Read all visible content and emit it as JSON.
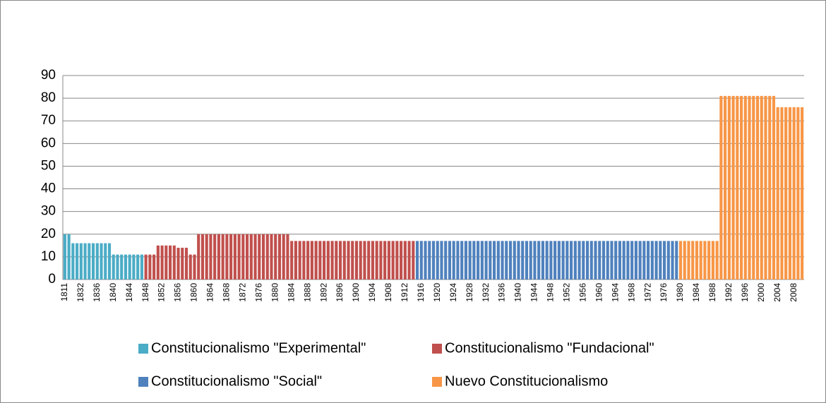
{
  "chart_data": {
    "type": "bar",
    "categories": [
      "1811",
      null,
      null,
      null,
      "1832",
      null,
      null,
      null,
      "1836",
      null,
      null,
      null,
      "1840",
      null,
      null,
      null,
      "1844",
      null,
      null,
      null,
      "1848",
      null,
      null,
      null,
      "1852",
      null,
      null,
      null,
      "1856",
      null,
      null,
      null,
      "1860",
      null,
      null,
      null,
      "1864",
      null,
      null,
      null,
      "1868",
      null,
      null,
      null,
      "1872",
      null,
      null,
      null,
      "1876",
      null,
      null,
      null,
      "1880",
      null,
      null,
      null,
      "1884",
      null,
      null,
      null,
      "1888",
      null,
      null,
      null,
      "1892",
      null,
      null,
      null,
      "1896",
      null,
      null,
      null,
      "1900",
      null,
      null,
      null,
      "1904",
      null,
      null,
      null,
      "1908",
      null,
      null,
      null,
      "1912",
      null,
      null,
      null,
      "1916",
      null,
      null,
      null,
      "1920",
      null,
      null,
      null,
      "1924",
      null,
      null,
      null,
      "1928",
      null,
      null,
      null,
      "1932",
      null,
      null,
      null,
      "1936",
      null,
      null,
      null,
      "1940",
      null,
      null,
      null,
      "1944",
      null,
      null,
      null,
      "1948",
      null,
      null,
      null,
      "1952",
      null,
      null,
      null,
      "1956",
      null,
      null,
      null,
      "1960",
      null,
      null,
      null,
      "1964",
      null,
      null,
      null,
      "1968",
      null,
      null,
      null,
      "1972",
      null,
      null,
      null,
      "1976",
      null,
      null,
      null,
      "1980",
      null,
      null,
      null,
      "1984",
      null,
      null,
      null,
      "1988",
      null,
      null,
      null,
      "1992",
      null,
      null,
      null,
      "1996",
      null,
      null,
      null,
      "2000",
      null,
      null,
      null,
      "2004",
      null,
      null,
      null,
      "2008",
      null,
      null
    ],
    "series": [
      {
        "name": "Constitucionalismo \"Experimental\"",
        "color": "#4bacc6",
        "values": [
          20,
          20,
          16,
          16,
          16,
          16,
          16,
          16,
          16,
          16,
          16,
          16,
          11,
          11,
          11,
          11,
          11,
          11,
          11,
          11,
          null,
          null,
          null,
          null,
          null,
          null,
          null,
          null,
          null,
          null,
          null,
          null,
          null,
          null,
          null,
          null,
          null,
          null,
          null,
          null,
          null,
          null,
          null,
          null,
          null,
          null,
          null,
          null,
          null,
          null,
          null,
          null,
          null,
          null,
          null,
          null,
          null,
          null,
          null,
          null,
          null,
          null,
          null,
          null,
          null,
          null,
          null,
          null,
          null,
          null,
          null,
          null,
          null,
          null,
          null,
          null,
          null,
          null,
          null,
          null,
          null,
          null,
          null,
          null,
          null,
          null,
          null,
          null,
          null,
          null,
          null,
          null,
          null,
          null,
          null,
          null,
          null,
          null,
          null,
          null,
          null,
          null,
          null,
          null,
          null,
          null,
          null,
          null,
          null,
          null,
          null,
          null,
          null,
          null,
          null,
          null,
          null,
          null,
          null,
          null,
          null,
          null,
          null,
          null,
          null,
          null,
          null,
          null,
          null,
          null,
          null,
          null,
          null,
          null,
          null,
          null,
          null,
          null,
          null,
          null,
          null,
          null,
          null,
          null,
          null,
          null,
          null,
          null,
          null,
          null,
          null,
          null,
          null,
          null,
          null,
          null,
          null,
          null,
          null,
          null,
          null,
          null,
          null,
          null,
          null,
          null,
          null,
          null,
          null,
          null,
          null,
          null,
          null,
          null,
          null,
          null,
          null,
          null,
          null,
          null,
          null,
          null,
          null
        ]
      },
      {
        "name": "Constitucionalismo \"Fundacional\"",
        "color": "#c0504d",
        "values": [
          null,
          null,
          null,
          null,
          null,
          null,
          null,
          null,
          null,
          null,
          null,
          null,
          null,
          null,
          null,
          null,
          null,
          null,
          null,
          null,
          11,
          11,
          11,
          15,
          15,
          15,
          15,
          15,
          14,
          14,
          14,
          11,
          11,
          20,
          20,
          20,
          20,
          20,
          20,
          20,
          20,
          20,
          20,
          20,
          20,
          20,
          20,
          20,
          20,
          20,
          20,
          20,
          20,
          20,
          20,
          20,
          17,
          17,
          17,
          17,
          17,
          17,
          17,
          17,
          17,
          17,
          17,
          17,
          17,
          17,
          17,
          17,
          17,
          17,
          17,
          17,
          17,
          17,
          17,
          17,
          17,
          17,
          17,
          17,
          17,
          17,
          17,
          null,
          null,
          null,
          null,
          null,
          null,
          null,
          null,
          null,
          null,
          null,
          null,
          null,
          null,
          null,
          null,
          null,
          null,
          null,
          null,
          null,
          null,
          null,
          null,
          null,
          null,
          null,
          null,
          null,
          null,
          null,
          null,
          null,
          null,
          null,
          null,
          null,
          null,
          null,
          null,
          null,
          null,
          null,
          null,
          null,
          null,
          null,
          null,
          null,
          null,
          null,
          null,
          null,
          null,
          null,
          null,
          null,
          null,
          null,
          null,
          null,
          null,
          null,
          null,
          null,
          null,
          null,
          null,
          null,
          null,
          null,
          null,
          null,
          null,
          null,
          null,
          null,
          null,
          null,
          null,
          null,
          null,
          null,
          null,
          null,
          null,
          null,
          null,
          null,
          null,
          null,
          null,
          null,
          null,
          null,
          null
        ]
      },
      {
        "name": "Constitucionalismo \"Social\"",
        "color": "#4f81bd",
        "values": [
          null,
          null,
          null,
          null,
          null,
          null,
          null,
          null,
          null,
          null,
          null,
          null,
          null,
          null,
          null,
          null,
          null,
          null,
          null,
          null,
          null,
          null,
          null,
          null,
          null,
          null,
          null,
          null,
          null,
          null,
          null,
          null,
          null,
          null,
          null,
          null,
          null,
          null,
          null,
          null,
          null,
          null,
          null,
          null,
          null,
          null,
          null,
          null,
          null,
          null,
          null,
          null,
          null,
          null,
          null,
          null,
          null,
          null,
          null,
          null,
          null,
          null,
          null,
          null,
          null,
          null,
          null,
          null,
          null,
          null,
          null,
          null,
          null,
          null,
          null,
          null,
          null,
          null,
          null,
          null,
          null,
          null,
          null,
          null,
          null,
          null,
          null,
          17,
          17,
          17,
          17,
          17,
          17,
          17,
          17,
          17,
          17,
          17,
          17,
          17,
          17,
          17,
          17,
          17,
          17,
          17,
          17,
          17,
          17,
          17,
          17,
          17,
          17,
          17,
          17,
          17,
          17,
          17,
          17,
          17,
          17,
          17,
          17,
          17,
          17,
          17,
          17,
          17,
          17,
          17,
          17,
          17,
          17,
          17,
          17,
          17,
          17,
          17,
          17,
          17,
          17,
          17,
          17,
          17,
          17,
          17,
          17,
          17,
          17,
          17,
          17,
          17,
          null,
          null,
          null,
          null,
          null,
          null,
          null,
          null,
          null,
          null,
          null,
          null,
          null,
          null,
          null,
          null,
          null,
          null,
          null,
          null,
          null,
          null,
          null,
          null,
          null,
          null,
          null,
          null,
          null,
          null,
          null
        ]
      },
      {
        "name": "Nuevo Constitucionalismo",
        "color": "#f79646",
        "values": [
          null,
          null,
          null,
          null,
          null,
          null,
          null,
          null,
          null,
          null,
          null,
          null,
          null,
          null,
          null,
          null,
          null,
          null,
          null,
          null,
          null,
          null,
          null,
          null,
          null,
          null,
          null,
          null,
          null,
          null,
          null,
          null,
          null,
          null,
          null,
          null,
          null,
          null,
          null,
          null,
          null,
          null,
          null,
          null,
          null,
          null,
          null,
          null,
          null,
          null,
          null,
          null,
          null,
          null,
          null,
          null,
          null,
          null,
          null,
          null,
          null,
          null,
          null,
          null,
          null,
          null,
          null,
          null,
          null,
          null,
          null,
          null,
          null,
          null,
          null,
          null,
          null,
          null,
          null,
          null,
          null,
          null,
          null,
          null,
          null,
          null,
          null,
          null,
          null,
          null,
          null,
          null,
          null,
          null,
          null,
          null,
          null,
          null,
          null,
          null,
          null,
          null,
          null,
          null,
          null,
          null,
          null,
          null,
          null,
          null,
          null,
          null,
          null,
          null,
          null,
          null,
          null,
          null,
          null,
          null,
          null,
          null,
          null,
          null,
          null,
          null,
          null,
          null,
          null,
          null,
          null,
          null,
          null,
          null,
          null,
          null,
          null,
          null,
          null,
          null,
          null,
          null,
          null,
          null,
          null,
          null,
          null,
          null,
          null,
          null,
          null,
          null,
          17,
          17,
          17,
          17,
          17,
          17,
          17,
          17,
          17,
          17,
          81,
          81,
          81,
          81,
          81,
          81,
          81,
          81,
          81,
          81,
          81,
          81,
          81,
          81,
          76,
          76,
          76,
          76,
          76,
          76,
          76
        ]
      }
    ],
    "ylim": [
      0,
      90
    ],
    "yticks": [
      0,
      10,
      20,
      30,
      40,
      50,
      60,
      70,
      80,
      90
    ],
    "grid": true,
    "legend": "bottom"
  }
}
